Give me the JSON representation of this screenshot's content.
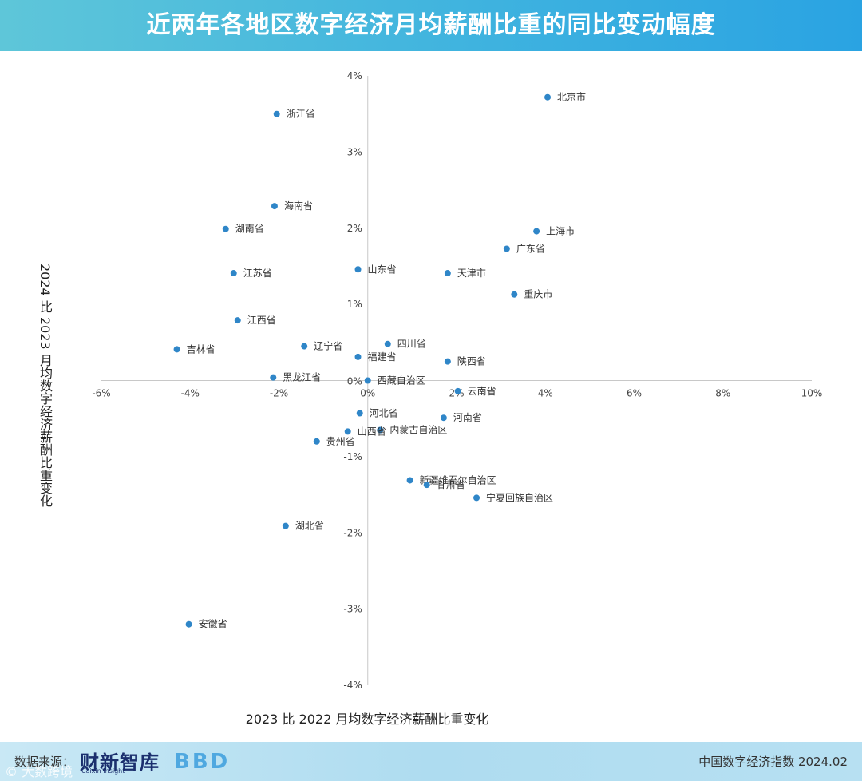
{
  "header": {
    "title": "近两年各地区数字经济月均薪酬比重的同比变动幅度"
  },
  "footer": {
    "source_label": "数据来源：",
    "brand_cn": "财新智库",
    "brand_en": "Caixin Insight",
    "bbd_logo": "BBD",
    "watermark": "© 大数跨境",
    "right_text": "中国数字经济指数 2024.02"
  },
  "colors": {
    "header": "#3fb3df",
    "point": "#2f86c8",
    "axis": "#c8c8c8",
    "footer": "#b7e0f2"
  },
  "chart_data": {
    "type": "scatter",
    "title": "近两年各地区数字经济月均薪酬比重的同比变动幅度",
    "xlabel": "2023 比 2022 月均数字经济薪酬比重变化",
    "ylabel": "2024 比 2023 月均数字经济薪酬比重变化",
    "xlim": [
      -6,
      10
    ],
    "ylim": [
      -4,
      4
    ],
    "xticks": [
      -6,
      -4,
      -2,
      0,
      2,
      4,
      6,
      8,
      10
    ],
    "xtick_labels": [
      "-6%",
      "-4%",
      "-2%",
      "0%",
      "2%",
      "4%",
      "6%",
      "8%",
      "10%"
    ],
    "yticks": [
      4,
      3,
      2,
      1,
      0,
      -1,
      -2,
      -3,
      -4
    ],
    "ytick_labels": [
      "4%",
      "3%",
      "2%",
      "1%",
      "0%",
      "-1%",
      "-2%",
      "-3%",
      "-4%"
    ],
    "grid": false,
    "points": [
      {
        "label": "北京市",
        "x": 4.05,
        "y": 3.72
      },
      {
        "label": "浙江省",
        "x": -2.05,
        "y": 3.5
      },
      {
        "label": "海南省",
        "x": -2.1,
        "y": 2.29
      },
      {
        "label": "湖南省",
        "x": -3.2,
        "y": 1.99
      },
      {
        "label": "上海市",
        "x": 3.8,
        "y": 1.96
      },
      {
        "label": "广东省",
        "x": 3.13,
        "y": 1.73
      },
      {
        "label": "山东省",
        "x": -0.22,
        "y": 1.46
      },
      {
        "label": "江苏省",
        "x": -3.02,
        "y": 1.41
      },
      {
        "label": "天津市",
        "x": 1.8,
        "y": 1.41
      },
      {
        "label": "重庆市",
        "x": 3.3,
        "y": 1.13
      },
      {
        "label": "江西省",
        "x": -2.93,
        "y": 0.79
      },
      {
        "label": "四川省",
        "x": 0.45,
        "y": 0.48
      },
      {
        "label": "吉林省",
        "x": -4.3,
        "y": 0.41
      },
      {
        "label": "辽宁省",
        "x": -1.43,
        "y": 0.45
      },
      {
        "label": "福建省",
        "x": -0.22,
        "y": 0.31
      },
      {
        "label": "陕西省",
        "x": 1.8,
        "y": 0.25
      },
      {
        "label": "黑龙江省",
        "x": -2.13,
        "y": 0.04
      },
      {
        "label": "西藏自治区",
        "x": 0.0,
        "y": 0.0
      },
      {
        "label": "云南省",
        "x": 2.03,
        "y": -0.14
      },
      {
        "label": "河北省",
        "x": -0.18,
        "y": -0.43
      },
      {
        "label": "河南省",
        "x": 1.71,
        "y": -0.49
      },
      {
        "label": "内蒙古自治区",
        "x": 0.28,
        "y": -0.65
      },
      {
        "label": "山西省",
        "x": -0.45,
        "y": -0.67
      },
      {
        "label": "贵州省",
        "x": -1.15,
        "y": -0.8
      },
      {
        "label": "新疆维吾尔自治区",
        "x": 0.95,
        "y": -1.31
      },
      {
        "label": "甘肃省",
        "x": 1.33,
        "y": -1.37
      },
      {
        "label": "宁夏回族自治区",
        "x": 2.45,
        "y": -1.54
      },
      {
        "label": "湖北省",
        "x": -1.85,
        "y": -1.91
      },
      {
        "label": "安徽省",
        "x": -4.03,
        "y": -3.2
      }
    ]
  }
}
